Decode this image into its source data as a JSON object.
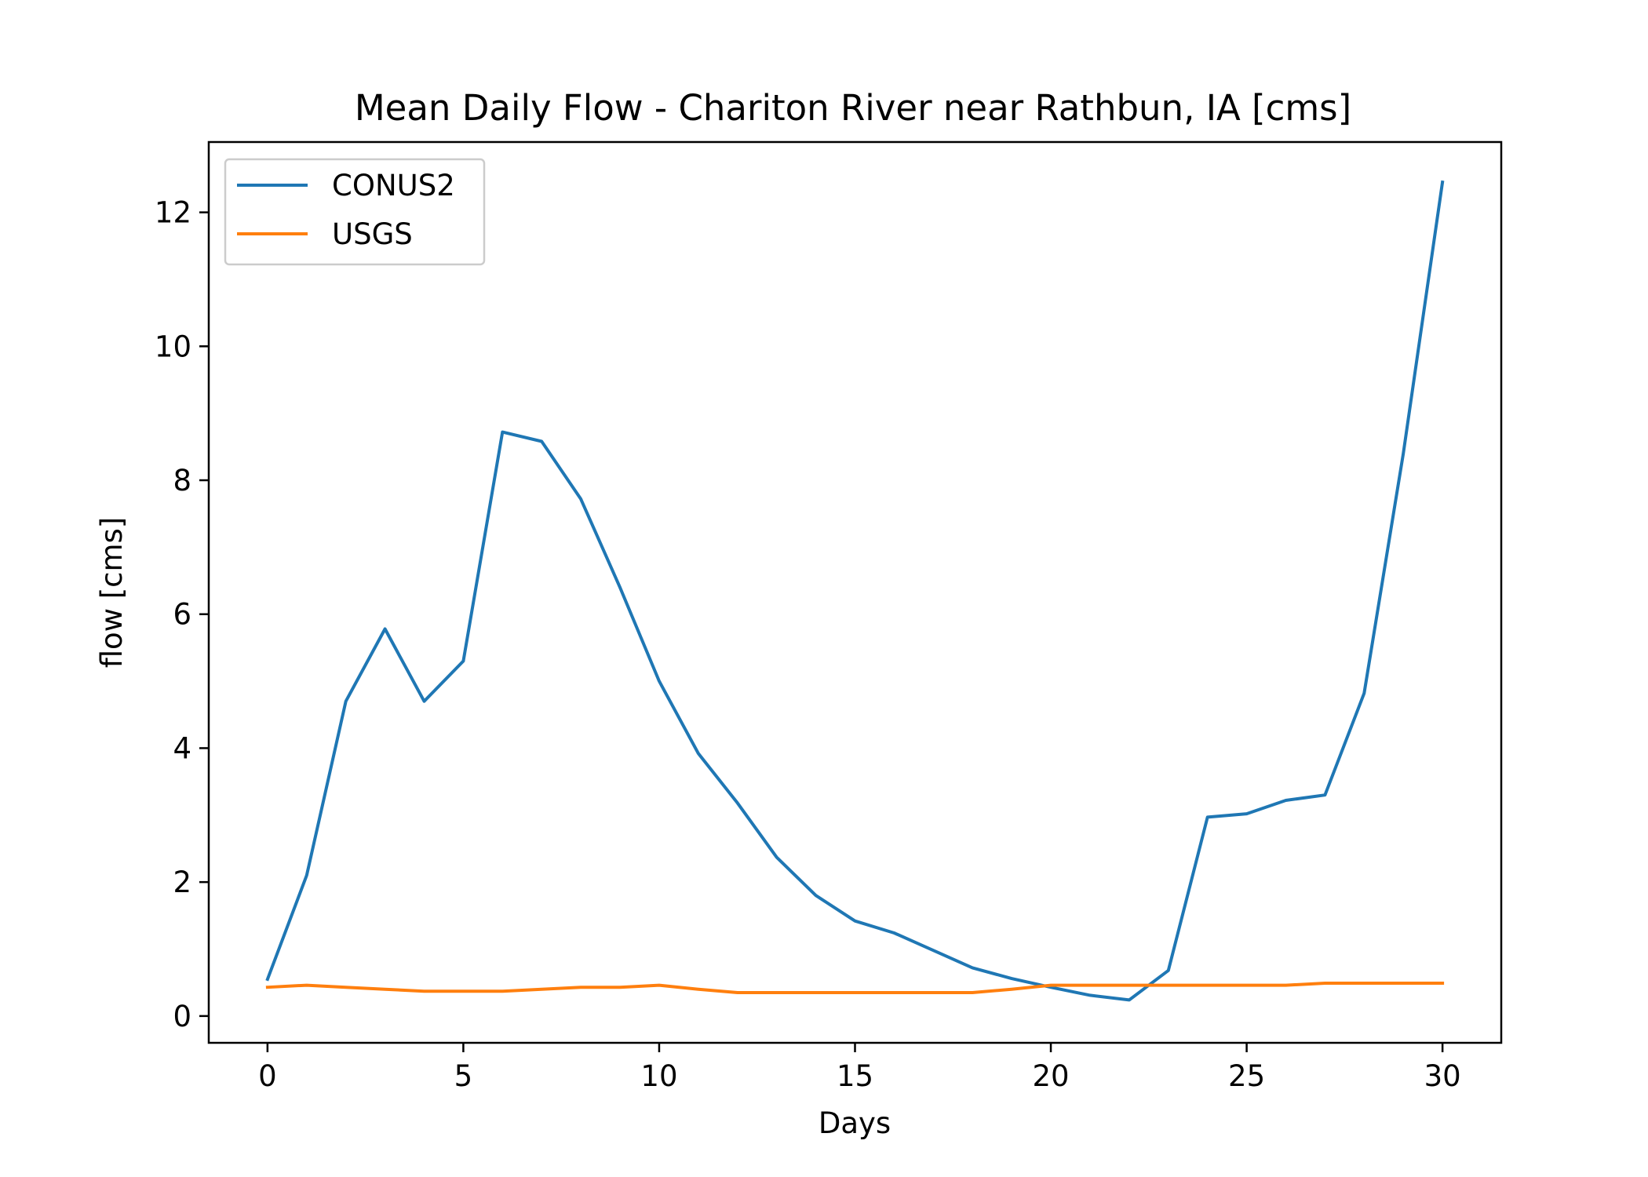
{
  "chart_data": {
    "type": "line",
    "title": "Mean Daily Flow - Chariton River near Rathbun, IA [cms]",
    "xlabel": "Days",
    "ylabel": "flow [cms]",
    "xlim": [
      -1.5,
      31.5
    ],
    "ylim": [
      -0.4,
      13.05
    ],
    "xticks": [
      0,
      5,
      10,
      15,
      20,
      25,
      30
    ],
    "yticks": [
      0,
      2,
      4,
      6,
      8,
      10,
      12
    ],
    "grid": false,
    "legend_position": "upper-left",
    "x": [
      0,
      1,
      2,
      3,
      4,
      5,
      6,
      7,
      8,
      9,
      10,
      11,
      12,
      13,
      14,
      15,
      16,
      17,
      18,
      19,
      20,
      21,
      22,
      23,
      24,
      25,
      26,
      27,
      28,
      29,
      30
    ],
    "series": [
      {
        "name": "CONUS2",
        "color": "#1f77b4",
        "values": [
          0.55,
          2.1,
          4.7,
          5.78,
          4.7,
          5.3,
          8.72,
          8.58,
          7.72,
          6.4,
          5.0,
          3.92,
          3.18,
          2.37,
          1.8,
          1.42,
          1.24,
          0.98,
          0.72,
          0.56,
          0.43,
          0.31,
          0.24,
          0.68,
          2.97,
          3.02,
          3.22,
          3.3,
          4.82,
          8.4,
          12.45
        ]
      },
      {
        "name": "USGS",
        "color": "#ff7f0e",
        "values": [
          0.43,
          0.46,
          0.43,
          0.4,
          0.37,
          0.37,
          0.37,
          0.4,
          0.43,
          0.43,
          0.46,
          0.4,
          0.35,
          0.35,
          0.35,
          0.35,
          0.35,
          0.35,
          0.35,
          0.4,
          0.46,
          0.46,
          0.46,
          0.46,
          0.46,
          0.46,
          0.46,
          0.49,
          0.49,
          0.49,
          0.49
        ]
      }
    ]
  }
}
